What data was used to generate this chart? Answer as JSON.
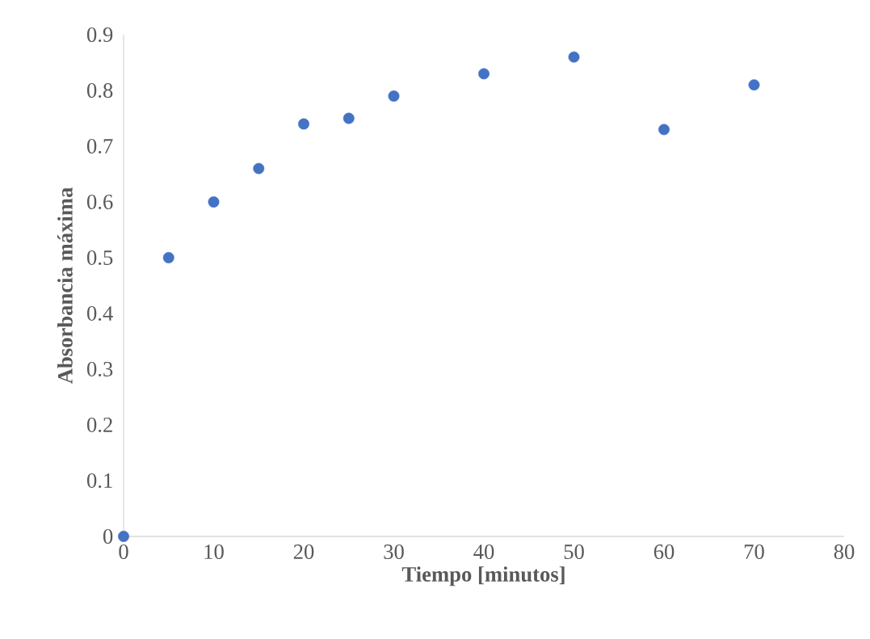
{
  "chart_data": {
    "type": "scatter",
    "xlabel": "Tiempo [minutos]",
    "ylabel": "Absorbancia máxima",
    "x": [
      0,
      5,
      10,
      15,
      20,
      25,
      30,
      40,
      50,
      60,
      70
    ],
    "values": [
      0,
      0.5,
      0.6,
      0.66,
      0.74,
      0.75,
      0.79,
      0.83,
      0.86,
      0.73,
      0.81
    ],
    "color": "#4472c4",
    "xlim": [
      0,
      80
    ],
    "ylim": [
      0,
      0.9
    ],
    "xticks": [
      0,
      10,
      20,
      30,
      40,
      50,
      60,
      70,
      80
    ],
    "yticks": [
      0,
      0.1,
      0.2,
      0.3,
      0.4,
      0.5,
      0.6,
      0.7,
      0.8,
      0.9
    ]
  }
}
